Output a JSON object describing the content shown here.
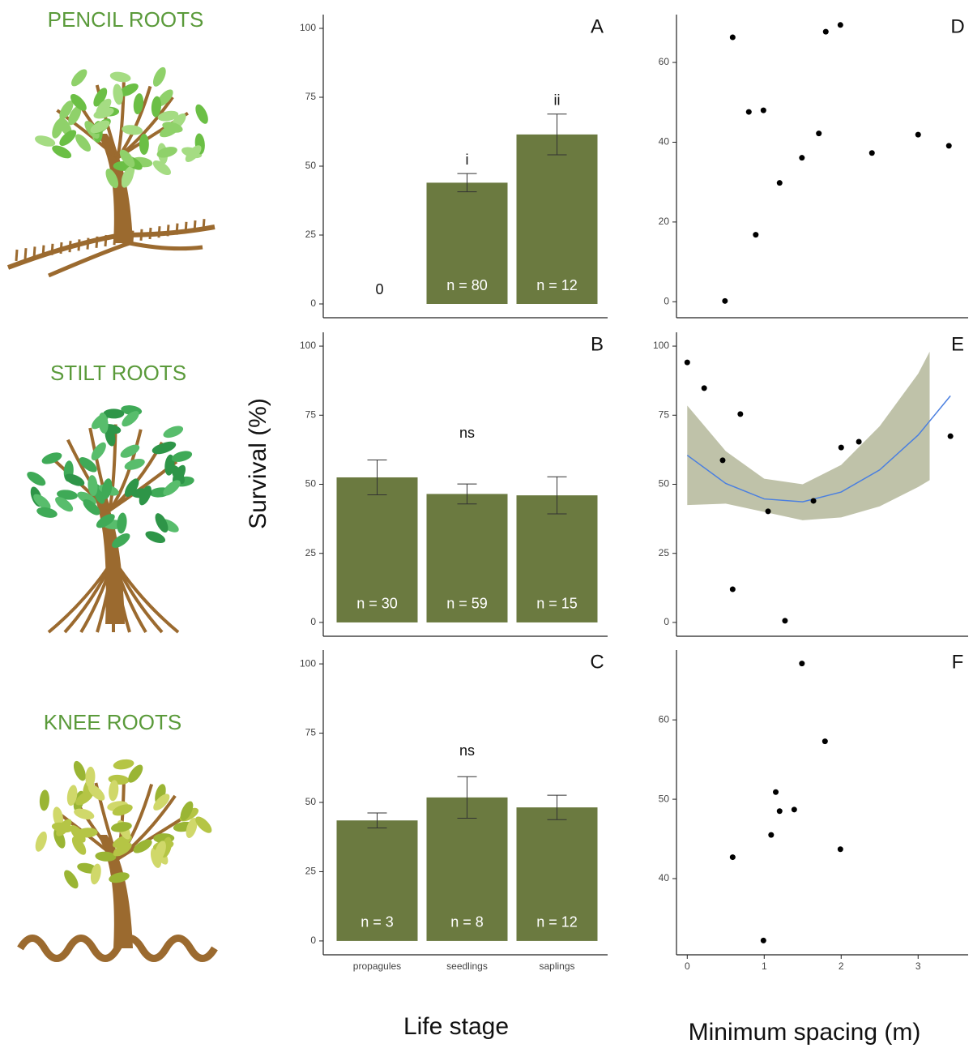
{
  "figure": {
    "row_labels": [
      "PENCIL ROOTS",
      "STILT ROOTS",
      "KNEE ROOTS"
    ],
    "ylabel": "Survival (%)",
    "xlabel_left": "Life stage",
    "xlabel_right": "Minimum spacing (m)"
  },
  "chart_data": [
    {
      "type": "bar",
      "panel_label": "A",
      "color": "#6b7a40",
      "values": [
        0,
        44,
        61.5
      ],
      "errors": [
        null,
        3.3,
        7.4
      ],
      "value_labels": [
        "0",
        null,
        null
      ],
      "n_labels": [
        null,
        "n = 80",
        "n = 12"
      ],
      "sig_labels": [
        null,
        "i",
        "ii"
      ],
      "ylim": [
        -5,
        105
      ],
      "yticks": [
        0,
        25,
        50,
        75,
        100
      ]
    },
    {
      "type": "bar",
      "panel_label": "B",
      "color": "#6b7a40",
      "annotation": "ns",
      "values": [
        52.5,
        46.5,
        46
      ],
      "errors": [
        6.3,
        3.6,
        6.7
      ],
      "n_labels": [
        "n = 30",
        "n = 59",
        "n = 15"
      ],
      "ylim": [
        -5,
        105
      ],
      "yticks": [
        0,
        25,
        50,
        75,
        100
      ]
    },
    {
      "type": "bar",
      "panel_label": "C",
      "color": "#6b7a40",
      "annotation": "ns",
      "categories": [
        "propagules",
        "seedlings",
        "saplings"
      ],
      "values": [
        43.5,
        51.8,
        48.2
      ],
      "errors": [
        2.7,
        7.5,
        4.4
      ],
      "n_labels": [
        "n = 3",
        "n = 8",
        "n = 12"
      ],
      "ylim": [
        -5,
        105
      ],
      "yticks": [
        0,
        25,
        50,
        75,
        100
      ]
    },
    {
      "type": "scatter",
      "panel_label": "D",
      "color": "#000000",
      "x": [
        0.49,
        0.59,
        0.8,
        0.99,
        0.89,
        1.2,
        1.49,
        1.71,
        1.8,
        1.99,
        2.4,
        3.0,
        3.4
      ],
      "values": [
        0.2,
        66.3,
        47.6,
        48,
        16.8,
        29.8,
        36.1,
        42.2,
        67.7,
        69.4,
        37.3,
        41.9,
        39.1
      ],
      "xlim": [
        -0.14,
        3.65
      ],
      "ylim": [
        -4,
        72
      ],
      "yticks": [
        0,
        20,
        40,
        60
      ]
    },
    {
      "type": "scatter",
      "panel_label": "E",
      "color": "#000000",
      "x": [
        0,
        0.22,
        0.46,
        0.69,
        0.59,
        1.05,
        1.27,
        1.64,
        2.0,
        2.23,
        3.42
      ],
      "values": [
        94.1,
        84.8,
        58.7,
        75.4,
        12,
        40.2,
        0.6,
        44,
        63.3,
        65.4,
        67.4
      ],
      "xlim": [
        -0.14,
        3.65
      ],
      "ylim": [
        -5,
        105
      ],
      "yticks": [
        0,
        25,
        50,
        75,
        100
      ],
      "fit": {
        "color": "#4a7fe0",
        "x": [
          0,
          0.5,
          1,
          1.5,
          2,
          2.5,
          3,
          3.42
        ],
        "values": [
          60.5,
          50.3,
          44.7,
          43.65,
          47.2,
          55.2,
          67.8,
          82
        ]
      },
      "band": {
        "color": "#a9ae8c",
        "x": [
          0,
          0.5,
          1,
          1.5,
          2,
          2.5,
          3,
          3.15
        ],
        "lower": [
          42.5,
          43,
          40,
          37,
          38,
          42,
          49,
          51.5
        ],
        "upper": [
          78.5,
          62,
          52,
          50,
          57,
          71,
          90,
          98
        ]
      }
    },
    {
      "type": "scatter",
      "panel_label": "F",
      "color": "#000000",
      "x": [
        0.59,
        0.99,
        1.09,
        1.15,
        1.2,
        1.39,
        1.49,
        1.79,
        1.99
      ],
      "values": [
        42.7,
        32.2,
        45.5,
        50.9,
        48.5,
        48.7,
        67.1,
        57.3,
        43.7
      ],
      "xlim": [
        -0.14,
        3.65
      ],
      "ylim": [
        30.4,
        68.8
      ],
      "yticks": [
        40,
        50,
        60
      ],
      "xticks": [
        0,
        1,
        2,
        3
      ]
    }
  ]
}
